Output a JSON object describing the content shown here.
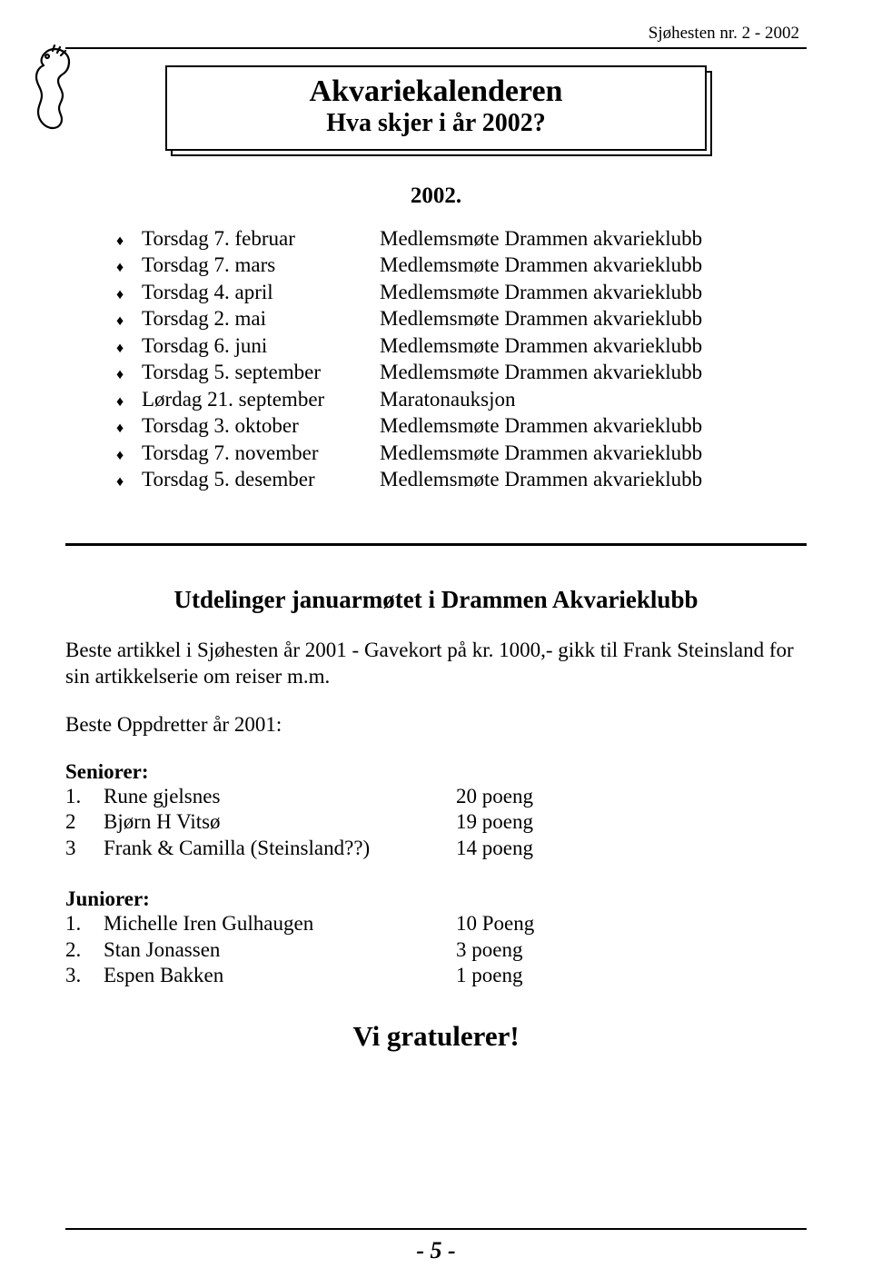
{
  "header": "Sjøhesten nr. 2 - 2002",
  "title": {
    "main": "Akvariekalenderen",
    "sub": "Hva skjer i år 2002?"
  },
  "year_label": "2002.",
  "events": [
    {
      "date": "Torsdag 7. februar",
      "desc": "Medlemsmøte Drammen akvarieklubb"
    },
    {
      "date": "Torsdag 7. mars",
      "desc": "Medlemsmøte Drammen akvarieklubb"
    },
    {
      "date": "Torsdag 4. april",
      "desc": "Medlemsmøte Drammen akvarieklubb"
    },
    {
      "date": "Torsdag 2. mai",
      "desc": "Medlemsmøte Drammen akvarieklubb"
    },
    {
      "date": "Torsdag 6. juni",
      "desc": "Medlemsmøte Drammen akvarieklubb"
    },
    {
      "date": "Torsdag 5. september",
      "desc": "Medlemsmøte Drammen akvarieklubb"
    },
    {
      "date": "Lørdag 21. september",
      "desc": "Maratonauksjon"
    },
    {
      "date": "Torsdag 3. oktober",
      "desc": "Medlemsmøte Drammen akvarieklubb"
    },
    {
      "date": "Torsdag 7. november",
      "desc": "Medlemsmøte Drammen akvarieklubb"
    },
    {
      "date": "Torsdag 5. desember",
      "desc": "Medlemsmøte Drammen akvarieklubb"
    }
  ],
  "awards": {
    "title": "Utdelinger januarmøtet i Drammen Akvarieklubb",
    "best_article": "Beste artikkel i Sjøhesten år 2001  - Gavekort på kr. 1000,- gikk til Frank Steinsland for sin artikkelserie om reiser m.m.",
    "best_breeder_label": "Beste Oppdretter år 2001:",
    "seniors_label": "Seniorer:",
    "seniors": [
      {
        "idx": "1.",
        "name": "Rune gjelsnes",
        "pts": "20 poeng"
      },
      {
        "idx": "2",
        "name": "Bjørn H Vitsø",
        "pts": "19 poeng"
      },
      {
        "idx": "3",
        "name": "Frank & Camilla (Steinsland??)",
        "pts": "14 poeng"
      }
    ],
    "juniors_label": "Juniorer:",
    "juniors": [
      {
        "idx": "1.",
        "name": "Michelle Iren Gulhaugen",
        "pts": "10 Poeng"
      },
      {
        "idx": "2.",
        "name": "Stan Jonassen",
        "pts": "  3 poeng"
      },
      {
        "idx": "3.",
        "name": "Espen Bakken",
        "pts": "  1 poeng"
      }
    ],
    "congrats": "Vi gratulerer!"
  },
  "page_number": "- 5 -",
  "bullet_glyph": "♦"
}
